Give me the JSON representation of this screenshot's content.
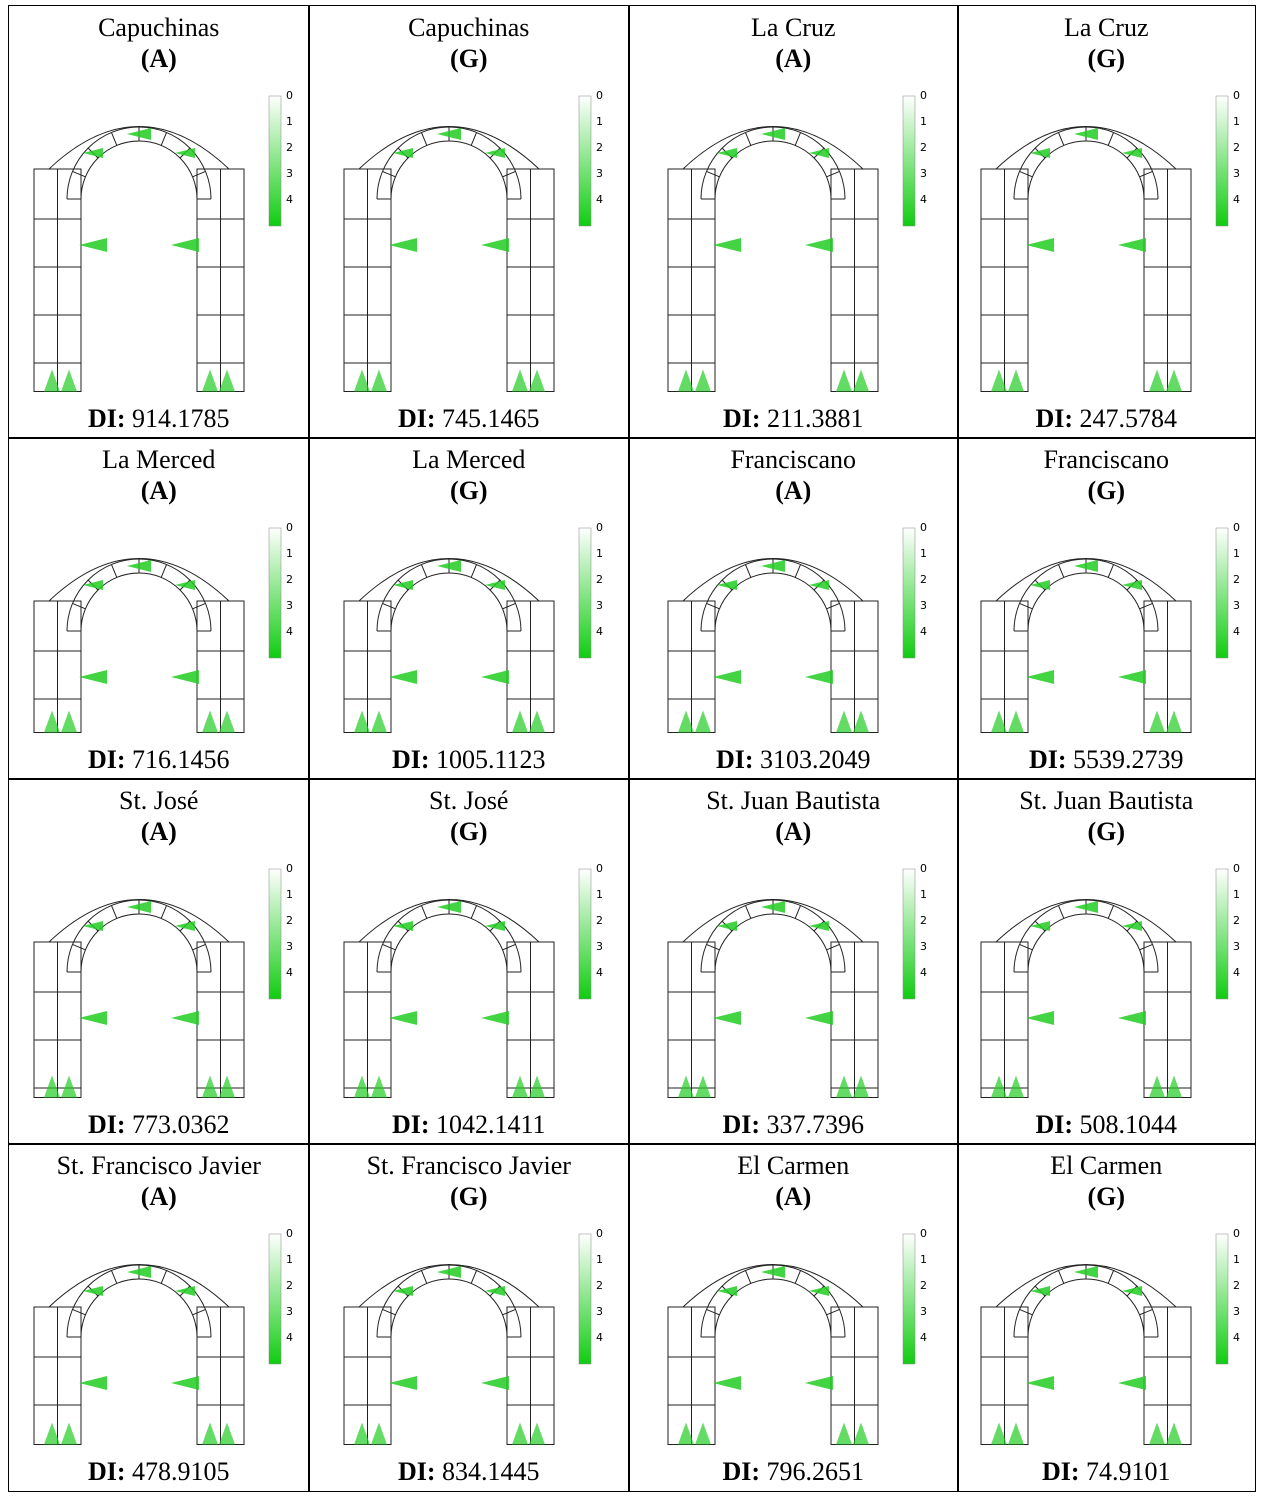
{
  "di_label": "DI:",
  "legend_ticks": [
    "0",
    "1",
    "2",
    "3",
    "4"
  ],
  "cells": [
    {
      "name": "Capuchinas",
      "variant": "(A)",
      "di": 914.1785
    },
    {
      "name": "Capuchinas",
      "variant": "(G)",
      "di": 745.1465
    },
    {
      "name": "La Cruz",
      "variant": "(A)",
      "di": 211.3881
    },
    {
      "name": "La Cruz",
      "variant": "(G)",
      "di": 247.5784
    },
    {
      "name": "La Merced",
      "variant": "(A)",
      "di": 716.1456
    },
    {
      "name": "La Merced",
      "variant": "(G)",
      "di": 1005.1123
    },
    {
      "name": "Franciscano",
      "variant": "(A)",
      "di": 3103.2049
    },
    {
      "name": "Franciscano",
      "variant": "(G)",
      "di": 5539.2739
    },
    {
      "name": "St. José",
      "variant": "(A)",
      "di": 773.0362
    },
    {
      "name": "St. José",
      "variant": "(G)",
      "di": 1042.1411
    },
    {
      "name": "St. Juan Bautista",
      "variant": "(A)",
      "di": 337.7396
    },
    {
      "name": "St. Juan Bautista",
      "variant": "(G)",
      "di": 508.1044
    },
    {
      "name": "St. Francisco Javier",
      "variant": "(A)",
      "di": 478.9105
    },
    {
      "name": "St. Francisco Javier",
      "variant": "(G)",
      "di": 834.1445
    },
    {
      "name": "El Carmen",
      "variant": "(A)",
      "di": 796.2651
    },
    {
      "name": "El Carmen",
      "variant": "(G)",
      "di": 74.9101
    }
  ]
}
